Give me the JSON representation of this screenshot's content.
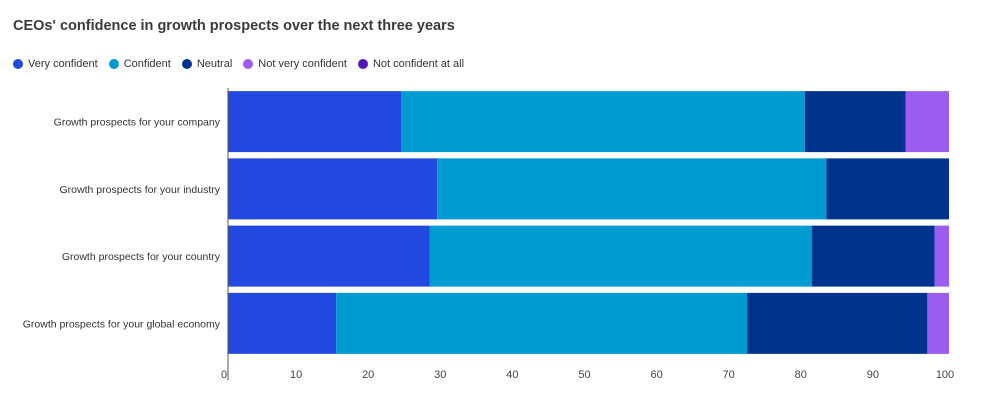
{
  "chart_data": {
    "type": "bar",
    "orientation": "horizontal",
    "stacked": true,
    "title": "CEOs' confidence in growth prospects over the next three years",
    "categories": [
      "Growth prospects for your company",
      "Growth prospects for your industry",
      "Growth prospects for your country",
      "Growth prospects for your global economy"
    ],
    "series": [
      {
        "name": "Very confident",
        "color": "#2249e0",
        "values": [
          24,
          29,
          28,
          15
        ]
      },
      {
        "name": "Confident",
        "color": "#009bd1",
        "values": [
          56,
          54,
          53,
          57
        ]
      },
      {
        "name": "Neutral",
        "color": "#00338d",
        "values": [
          14,
          17,
          17,
          25
        ]
      },
      {
        "name": "Not very confident",
        "color": "#9b5cf0",
        "values": [
          6,
          0,
          2,
          3
        ]
      },
      {
        "name": "Not confident at all",
        "color": "#5218c0",
        "values": [
          0,
          0,
          0,
          0
        ]
      }
    ],
    "xlim": [
      0,
      100
    ],
    "xticks": [
      "0",
      "10",
      "20",
      "30",
      "40",
      "50",
      "60",
      "70",
      "80",
      "90",
      "100"
    ],
    "grid": false,
    "legend_position": "top-left"
  }
}
